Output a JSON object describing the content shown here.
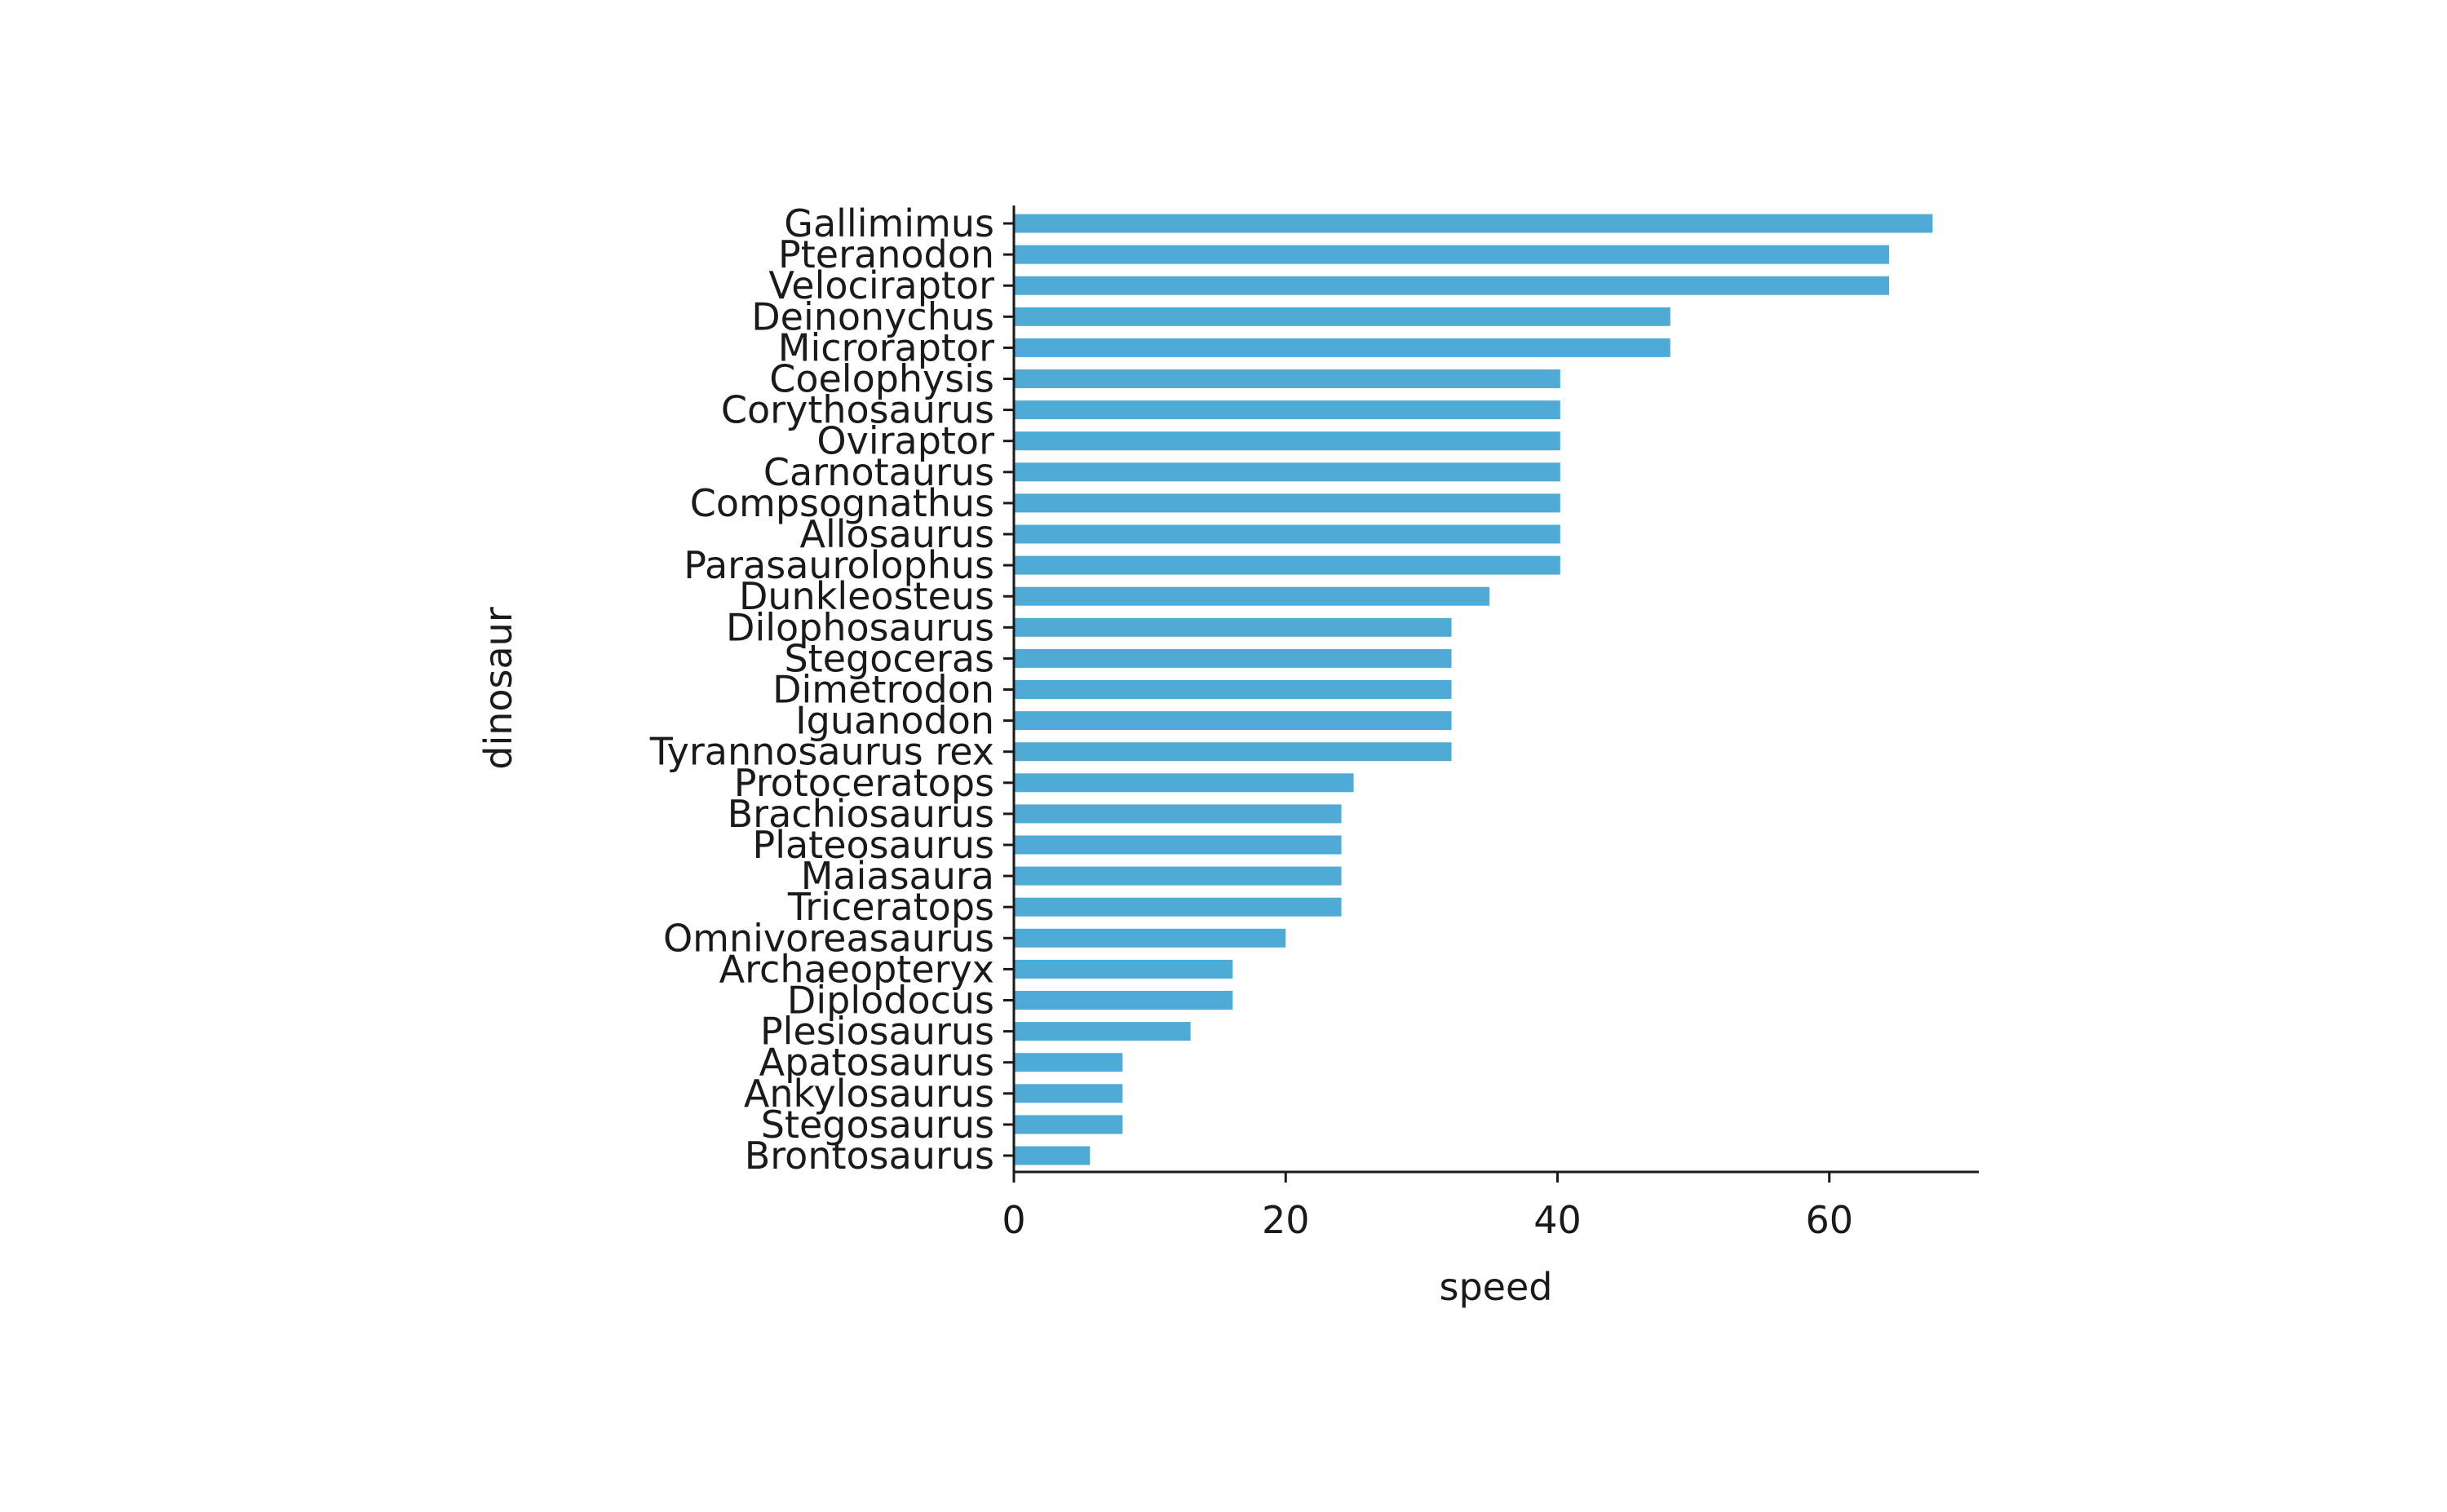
{
  "chart_data": {
    "type": "bar",
    "orientation": "horizontal",
    "xlabel": "speed",
    "ylabel": "dinosaur",
    "xlim": [
      0,
      71
    ],
    "xticks": [
      0,
      20,
      40,
      60
    ],
    "grid": false,
    "bar_color": "#4fabd6",
    "categories": [
      "Gallimimus",
      "Pteranodon",
      "Velociraptor",
      "Deinonychus",
      "Microraptor",
      "Coelophysis",
      "Corythosaurus",
      "Oviraptor",
      "Carnotaurus",
      "Compsognathus",
      "Allosaurus",
      "Parasaurolophus",
      "Dunkleosteus",
      "Dilophosaurus",
      "Stegoceras",
      "Dimetrodon",
      "Iguanodon",
      "Tyrannosaurus rex",
      "Protoceratops",
      "Brachiosaurus",
      "Plateosaurus",
      "Maiasaura",
      "Triceratops",
      "Omnivoreasaurus",
      "Archaeopteryx",
      "Diplodocus",
      "Plesiosaurus",
      "Apatosaurus",
      "Ankylosaurus",
      "Stegosaurus",
      "Brontosaurus"
    ],
    "values": [
      67.6,
      64.4,
      64.4,
      48.3,
      48.3,
      40.2,
      40.2,
      40.2,
      40.2,
      40.2,
      40.2,
      40.2,
      35.0,
      32.2,
      32.2,
      32.2,
      32.2,
      32.2,
      25.0,
      24.1,
      24.1,
      24.1,
      24.1,
      20.0,
      16.1,
      16.1,
      13.0,
      8.0,
      8.0,
      8.0,
      5.6
    ]
  }
}
